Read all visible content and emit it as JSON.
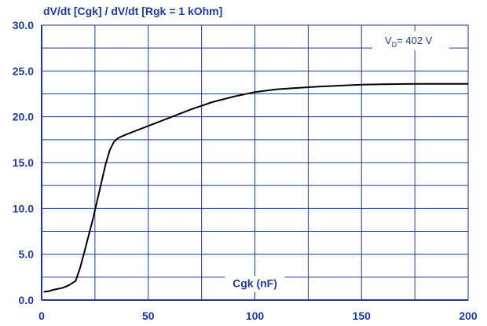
{
  "chart_data": {
    "type": "line",
    "title": "dV/dt [Cgk] / dV/dt [Rgk = 1 kOhm]",
    "xlabel": "Cgk (nF)",
    "ylabel": "",
    "xlim": [
      0,
      200
    ],
    "ylim": [
      0,
      30
    ],
    "x_ticks": [
      "0",
      "50",
      "100",
      "150",
      "200"
    ],
    "y_ticks": [
      "0.0",
      "5.0",
      "10.0",
      "15.0",
      "20.0",
      "25.0",
      "30.0"
    ],
    "grid": true,
    "annotation": {
      "prefix": "V",
      "subscript": "D",
      "text": "= 402 V"
    },
    "colors": {
      "text": "#1f3a93",
      "grid": "#1f3a93",
      "line": "#000000"
    },
    "series": [
      {
        "values": [
          [
            1,
            0.9
          ],
          [
            3,
            0.95
          ],
          [
            6,
            1.15
          ],
          [
            10,
            1.35
          ],
          [
            13,
            1.65
          ],
          [
            16,
            2.1
          ],
          [
            18,
            3.5
          ],
          [
            20,
            5.2
          ],
          [
            22,
            7.0
          ],
          [
            24,
            8.8
          ],
          [
            26,
            10.8
          ],
          [
            28,
            12.8
          ],
          [
            30,
            14.8
          ],
          [
            32,
            16.4
          ],
          [
            34,
            17.3
          ],
          [
            36,
            17.7
          ],
          [
            40,
            18.1
          ],
          [
            50,
            19.0
          ],
          [
            60,
            19.9
          ],
          [
            70,
            20.8
          ],
          [
            80,
            21.6
          ],
          [
            90,
            22.2
          ],
          [
            100,
            22.7
          ],
          [
            110,
            23.0
          ],
          [
            120,
            23.15
          ],
          [
            130,
            23.3
          ],
          [
            140,
            23.4
          ],
          [
            150,
            23.5
          ],
          [
            160,
            23.55
          ],
          [
            170,
            23.58
          ],
          [
            180,
            23.6
          ],
          [
            190,
            23.6
          ],
          [
            200,
            23.6
          ]
        ]
      }
    ]
  }
}
